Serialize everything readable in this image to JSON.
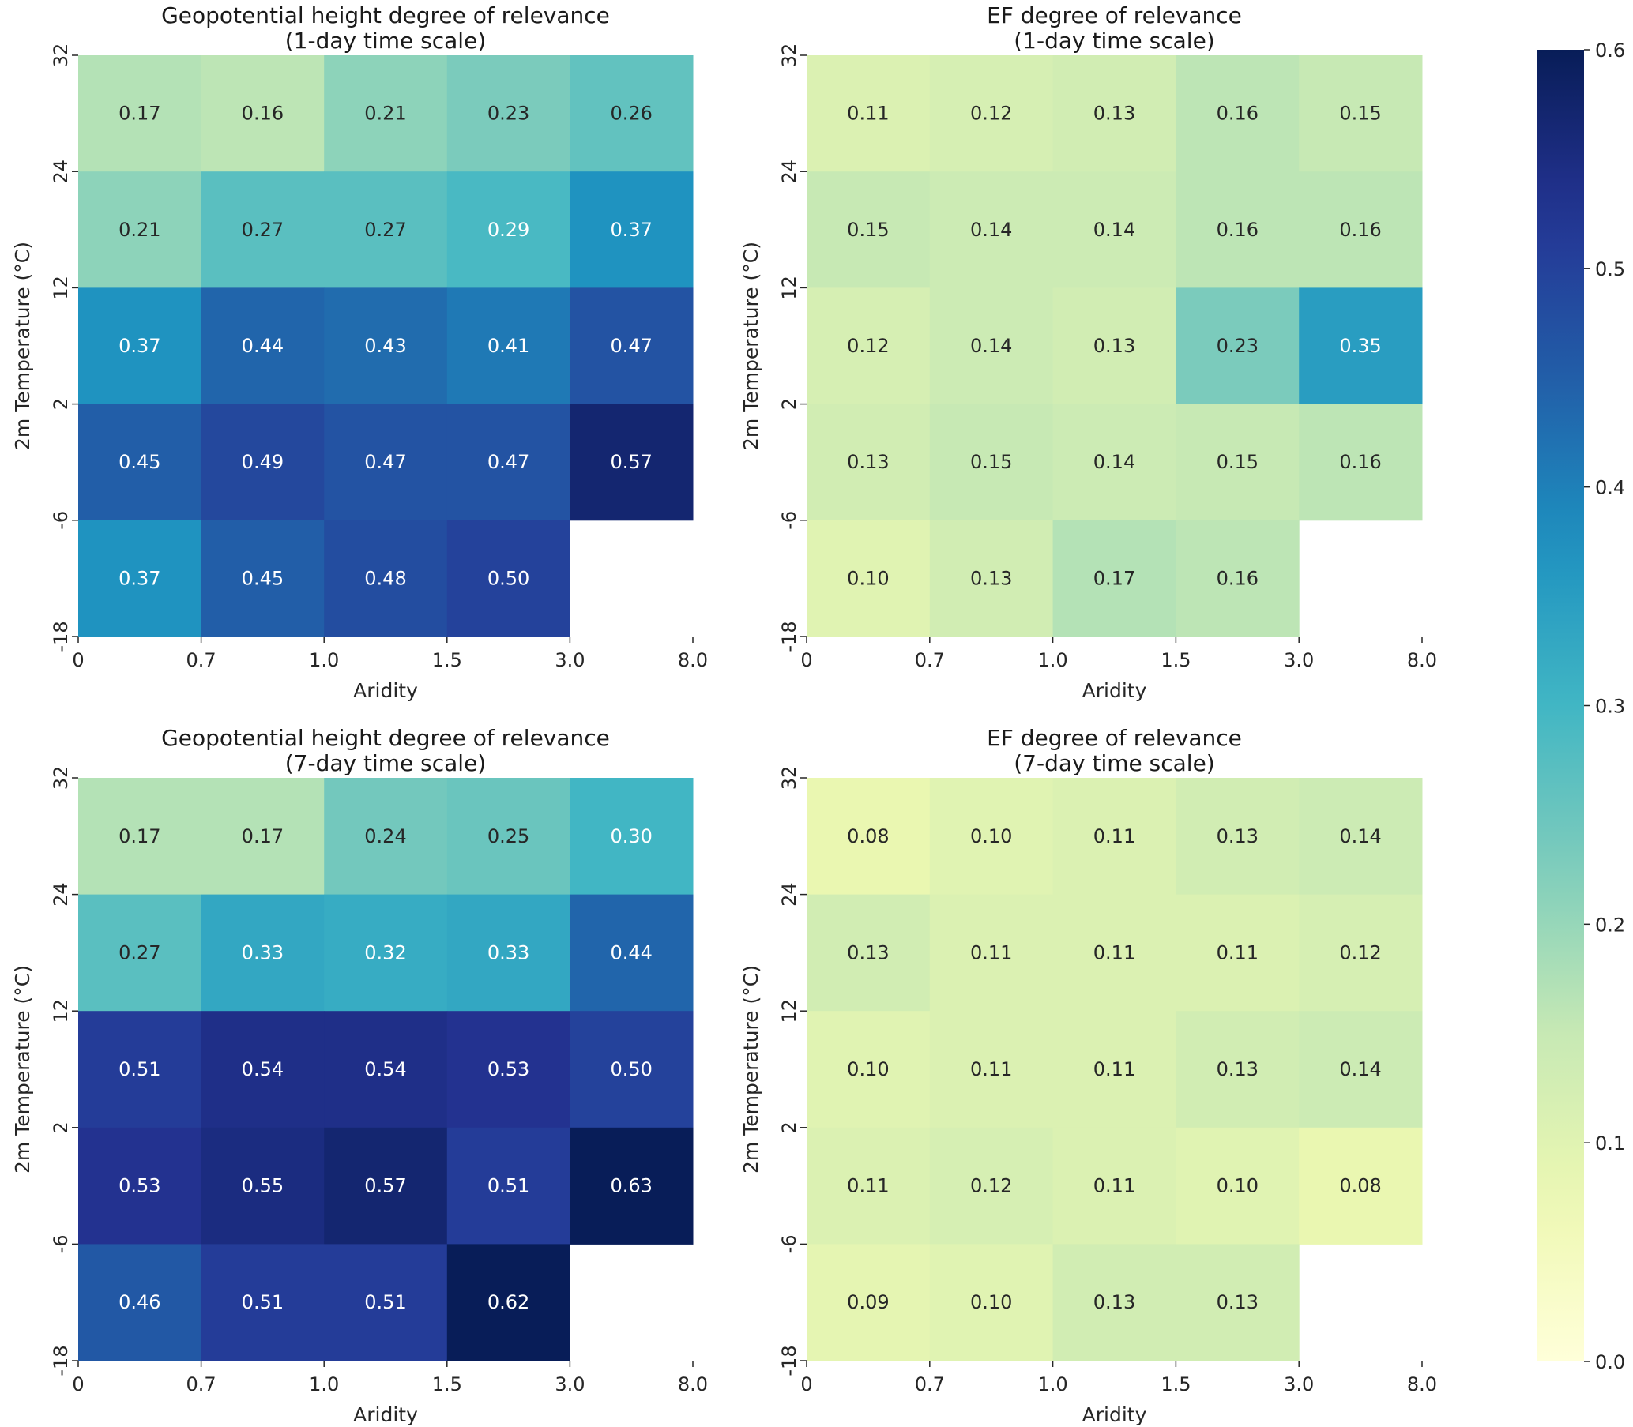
{
  "chart_data": {
    "type": "heatmap",
    "colormap": "YlGnBu",
    "vmin": 0.0,
    "vmax": 0.6,
    "colorbar": {
      "ticks": [
        "0.0",
        "0.1",
        "0.2",
        "0.3",
        "0.4",
        "0.5",
        "0.6"
      ],
      "placement": "right"
    },
    "x_ticks": [
      "0",
      "0.7",
      "1.0",
      "1.5",
      "3.0",
      "8.0"
    ],
    "y_ticks": [
      "32",
      "24",
      "12",
      "2",
      "-6",
      "-18"
    ],
    "panels": [
      {
        "id": "gph-1day",
        "title_line1": "Geopotential height degree of relevance",
        "title_line2": "(1-day time scale)",
        "xlabel": "Aridity",
        "ylabel": "2m Temperature (°C)",
        "values": [
          [
            0.17,
            0.16,
            0.21,
            0.23,
            0.26
          ],
          [
            0.21,
            0.27,
            0.27,
            0.29,
            0.37
          ],
          [
            0.37,
            0.44,
            0.43,
            0.41,
            0.47
          ],
          [
            0.45,
            0.49,
            0.47,
            0.47,
            0.57
          ],
          [
            0.37,
            0.45,
            0.48,
            0.5,
            null
          ]
        ],
        "labels": [
          [
            "0.17",
            "0.16",
            "0.21",
            "0.23",
            "0.26"
          ],
          [
            "0.21",
            "0.27",
            "0.27",
            "0.29",
            "0.37"
          ],
          [
            "0.37",
            "0.44",
            "0.43",
            "0.41",
            "0.47"
          ],
          [
            "0.45",
            "0.49",
            "0.47",
            "0.47",
            "0.57"
          ],
          [
            "0.37",
            "0.45",
            "0.48",
            "0.50",
            ""
          ]
        ]
      },
      {
        "id": "ef-1day",
        "title_line1": "EF degree of relevance",
        "title_line2": "(1-day time scale)",
        "xlabel": "Aridity",
        "ylabel": "2m Temperature (°C)",
        "values": [
          [
            0.11,
            0.12,
            0.13,
            0.16,
            0.15
          ],
          [
            0.15,
            0.14,
            0.14,
            0.16,
            0.16
          ],
          [
            0.12,
            0.14,
            0.13,
            0.23,
            0.35
          ],
          [
            0.13,
            0.15,
            0.14,
            0.15,
            0.16
          ],
          [
            0.1,
            0.13,
            0.17,
            0.16,
            null
          ]
        ],
        "labels": [
          [
            "0.11",
            "0.12",
            "0.13",
            "0.16",
            "0.15"
          ],
          [
            "0.15",
            "0.14",
            "0.14",
            "0.16",
            "0.16"
          ],
          [
            "0.12",
            "0.14",
            "0.13",
            "0.23",
            "0.35"
          ],
          [
            "0.13",
            "0.15",
            "0.14",
            "0.15",
            "0.16"
          ],
          [
            "0.10",
            "0.13",
            "0.17",
            "0.16",
            ""
          ]
        ]
      },
      {
        "id": "gph-7day",
        "title_line1": "Geopotential height degree of relevance",
        "title_line2": "(7-day time scale)",
        "xlabel": "Aridity",
        "ylabel": "2m Temperature (°C)",
        "values": [
          [
            0.17,
            0.17,
            0.24,
            0.25,
            0.3
          ],
          [
            0.27,
            0.33,
            0.32,
            0.33,
            0.44
          ],
          [
            0.51,
            0.54,
            0.54,
            0.53,
            0.5
          ],
          [
            0.53,
            0.55,
            0.57,
            0.51,
            0.63
          ],
          [
            0.46,
            0.51,
            0.51,
            0.62,
            null
          ]
        ],
        "labels": [
          [
            "0.17",
            "0.17",
            "0.24",
            "0.25",
            "0.30"
          ],
          [
            "0.27",
            "0.33",
            "0.32",
            "0.33",
            "0.44"
          ],
          [
            "0.51",
            "0.54",
            "0.54",
            "0.53",
            "0.50"
          ],
          [
            "0.53",
            "0.55",
            "0.57",
            "0.51",
            "0.63"
          ],
          [
            "0.46",
            "0.51",
            "0.51",
            "0.62",
            ""
          ]
        ]
      },
      {
        "id": "ef-7day",
        "title_line1": "EF degree of relevance",
        "title_line2": "(7-day time scale)",
        "xlabel": "Aridity",
        "ylabel": "2m Temperature (°C)",
        "values": [
          [
            0.08,
            0.1,
            0.11,
            0.13,
            0.14
          ],
          [
            0.13,
            0.11,
            0.11,
            0.11,
            0.12
          ],
          [
            0.1,
            0.11,
            0.11,
            0.13,
            0.14
          ],
          [
            0.11,
            0.12,
            0.11,
            0.1,
            0.08
          ],
          [
            0.09,
            0.1,
            0.13,
            0.13,
            null
          ]
        ],
        "labels": [
          [
            "0.08",
            "0.10",
            "0.11",
            "0.13",
            "0.14"
          ],
          [
            "0.13",
            "0.11",
            "0.11",
            "0.11",
            "0.12"
          ],
          [
            "0.10",
            "0.11",
            "0.11",
            "0.13",
            "0.14"
          ],
          [
            "0.11",
            "0.12",
            "0.11",
            "0.10",
            "0.08"
          ],
          [
            "0.09",
            "0.10",
            "0.13",
            "0.13",
            ""
          ]
        ]
      }
    ]
  }
}
